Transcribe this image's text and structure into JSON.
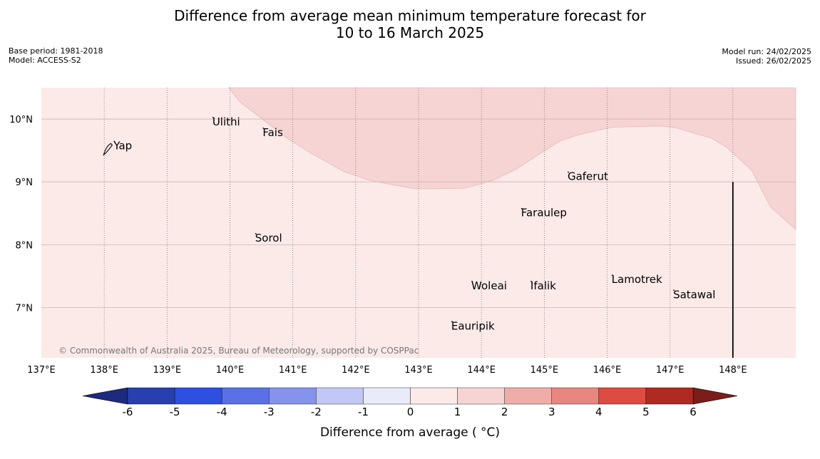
{
  "header": {
    "title_line1": "Difference from average mean minimum temperature forecast for",
    "title_line2": "10 to 16 March 2025",
    "base_period": "Base period: 1981-2018",
    "model": "Model: ACCESS-S2",
    "model_run": "Model run: 24/02/2025",
    "issued": "Issued: 26/02/2025"
  },
  "map": {
    "lon_range": [
      137,
      149
    ],
    "lat_range": [
      6.2,
      10.5
    ],
    "lon_ticks": [
      {
        "value": 137,
        "label": "137°E"
      },
      {
        "value": 138,
        "label": "138°E"
      },
      {
        "value": 139,
        "label": "139°E"
      },
      {
        "value": 140,
        "label": "140°E"
      },
      {
        "value": 141,
        "label": "141°E"
      },
      {
        "value": 142,
        "label": "142°E"
      },
      {
        "value": 143,
        "label": "143°E"
      },
      {
        "value": 144,
        "label": "144°E"
      },
      {
        "value": 145,
        "label": "145°E"
      },
      {
        "value": 146,
        "label": "146°E"
      },
      {
        "value": 147,
        "label": "147°E"
      },
      {
        "value": 148,
        "label": "148°E"
      }
    ],
    "lat_ticks": [
      {
        "value": 10,
        "label": "10°N"
      },
      {
        "value": 9,
        "label": "9°N"
      },
      {
        "value": 8,
        "label": "8°N"
      },
      {
        "value": 7,
        "label": "7°N"
      }
    ],
    "places": [
      {
        "name": "Yap",
        "lon": 138.15,
        "lat": 9.52
      },
      {
        "name": "Ulithi",
        "lon": 139.72,
        "lat": 9.9
      },
      {
        "name": "Fais",
        "lon": 140.52,
        "lat": 9.73
      },
      {
        "name": "Gaferut",
        "lon": 145.37,
        "lat": 9.03
      },
      {
        "name": "Faraulep",
        "lon": 144.63,
        "lat": 8.45
      },
      {
        "name": "Sorol",
        "lon": 140.4,
        "lat": 8.05
      },
      {
        "name": "Lamotrek",
        "lon": 146.07,
        "lat": 7.39
      },
      {
        "name": "Woleai",
        "lon": 143.84,
        "lat": 7.29
      },
      {
        "name": "Ifalik",
        "lon": 144.78,
        "lat": 7.29
      },
      {
        "name": "Satawal",
        "lon": 147.05,
        "lat": 7.15
      },
      {
        "name": "Eauripik",
        "lon": 143.52,
        "lat": 6.65
      }
    ],
    "background_anomaly_category": "0 to 1",
    "region_anomaly_category": "1 to 2",
    "region_boundary": [
      [
        139.98,
        10.5
      ],
      [
        140.15,
        10.28
      ],
      [
        140.45,
        10.05
      ],
      [
        140.9,
        9.7
      ],
      [
        141.3,
        9.45
      ],
      [
        141.8,
        9.17
      ],
      [
        142.2,
        9.03
      ],
      [
        142.6,
        8.95
      ],
      [
        142.95,
        8.89
      ],
      [
        143.3,
        8.89
      ],
      [
        143.75,
        8.9
      ],
      [
        144.2,
        9.03
      ],
      [
        144.55,
        9.2
      ],
      [
        144.9,
        9.43
      ],
      [
        145.25,
        9.65
      ],
      [
        145.55,
        9.75
      ],
      [
        145.85,
        9.82
      ],
      [
        146.1,
        9.87
      ],
      [
        146.5,
        9.88
      ],
      [
        146.85,
        9.89
      ],
      [
        147.1,
        9.86
      ],
      [
        147.4,
        9.77
      ],
      [
        147.65,
        9.7
      ],
      [
        147.9,
        9.55
      ],
      [
        148.3,
        9.18
      ],
      [
        148.6,
        8.6
      ],
      [
        149.0,
        8.24
      ]
    ],
    "copyright": "© Commonwealth of Australia 2025, Bureau of Meteorology, supported by COSPPac"
  },
  "legend": {
    "title": "Difference from average ( °C)",
    "ticks": [
      "-6",
      "-5",
      "-4",
      "-3",
      "-2",
      "-1",
      "0",
      "1",
      "2",
      "3",
      "4",
      "5",
      "6"
    ],
    "colors": [
      "#283fb0",
      "#2e4fe0",
      "#5a70e6",
      "#8593ec",
      "#c2c8f5",
      "#e9ebfb",
      "#fbeae8",
      "#f5d4d3",
      "#efada8",
      "#e88680",
      "#de4b40",
      "#ae2a23"
    ],
    "under_color": "#1c2a80",
    "over_color": "#7b1d1a"
  },
  "colors": {
    "ocean_bg": "#fbeae8",
    "warm_region": "#f5d4d3",
    "grid_lat": "#cfb4b2",
    "grid_lon": "#6a6a6a",
    "marker_line": "#000000"
  }
}
